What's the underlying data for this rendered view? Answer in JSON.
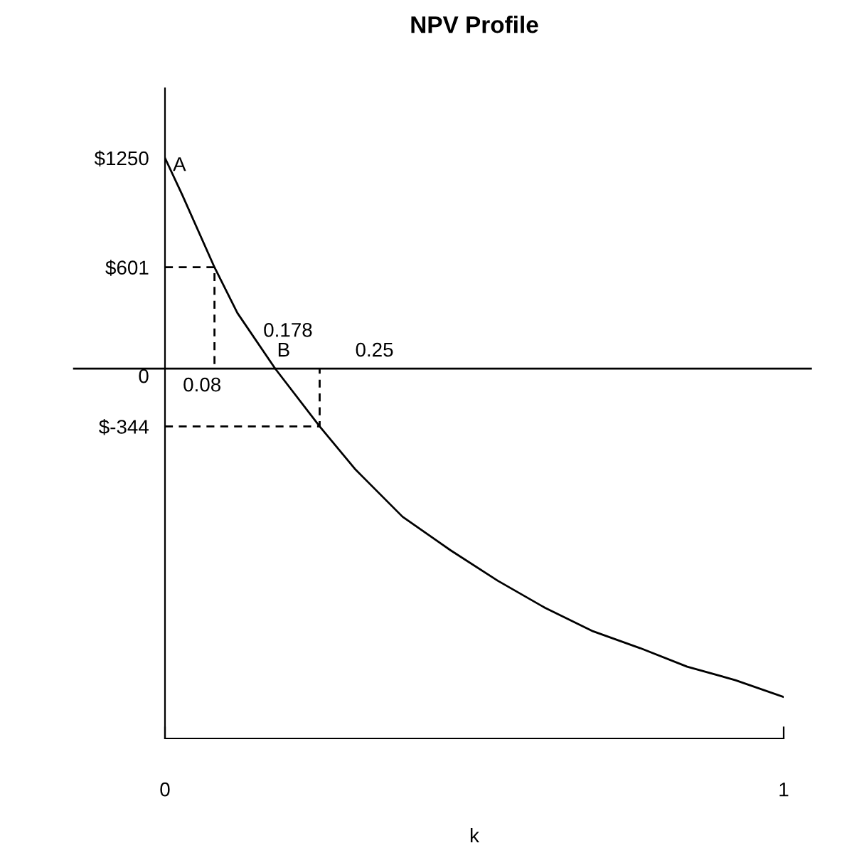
{
  "chart_data": {
    "type": "line",
    "title": "NPV Profile",
    "xlabel": "k",
    "xlim": [
      0,
      1
    ],
    "xticks": [
      0,
      1
    ],
    "ylim": [
      -2196,
      1664
    ],
    "yticks": [
      {
        "value": 1250,
        "label": "$1250"
      },
      {
        "value": 601,
        "label": "$601"
      },
      {
        "value": 0,
        "label": "0"
      },
      {
        "value": -344,
        "label": "$-344"
      }
    ],
    "series": [
      {
        "color": "#000000",
        "line_style": "solid",
        "x": [
          0,
          0.028,
          0.08,
          0.117,
          0.178,
          0.25,
          0.308,
          0.384,
          0.462,
          0.538,
          0.614,
          0.692,
          0.768,
          0.844,
          0.922,
          1
        ],
        "values": [
          1250,
          1030,
          601,
          330,
          0,
          -344,
          -600,
          -880,
          -1080,
          -1260,
          -1420,
          -1560,
          -1660,
          -1770,
          -1850,
          -1950
        ]
      },
      {
        "color": "#000000",
        "line_style": "dashed",
        "x": [
          0,
          0.08,
          0.08
        ],
        "values": [
          601,
          601,
          0
        ]
      },
      {
        "color": "#000000",
        "line_style": "dashed",
        "x": [
          0,
          0.25,
          0.25
        ],
        "values": [
          -344,
          -344,
          0
        ]
      }
    ],
    "ref_lines": [
      {
        "axis": "y",
        "value": 0,
        "color": "#000000",
        "line_style": "solid"
      }
    ],
    "annotations": [
      {
        "text": "A",
        "x": 0,
        "y": 1250
      },
      {
        "text": "0.08",
        "x": 0.08,
        "y": 0
      },
      {
        "text": "0.178",
        "x": 0.178,
        "y": 0
      },
      {
        "text": "B",
        "x": 0.178,
        "y": 0
      },
      {
        "text": "0.25",
        "x": 0.25,
        "y": 0
      }
    ],
    "legend": false,
    "grid": false,
    "marker": "none"
  }
}
